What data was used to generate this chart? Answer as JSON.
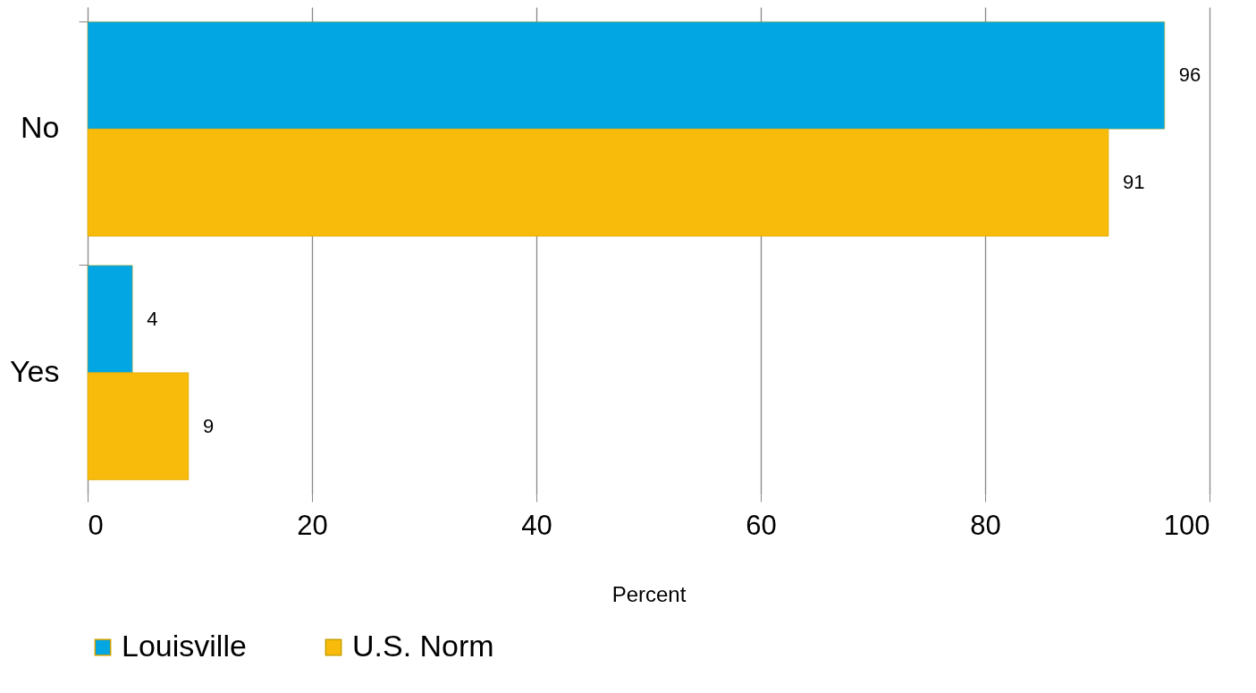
{
  "chart_data": {
    "type": "bar",
    "orientation": "horizontal",
    "categories": [
      "No",
      "Yes"
    ],
    "series": [
      {
        "name": "Louisville",
        "color": "#02a6e2",
        "values": [
          96,
          4
        ]
      },
      {
        "name": "U.S. Norm",
        "color": "#f8bb0b",
        "values": [
          91,
          9
        ]
      }
    ],
    "xlabel": "Percent",
    "xlim": [
      0,
      100
    ],
    "xticks": [
      0,
      20,
      40,
      60,
      80,
      100
    ],
    "grid": "x",
    "legend": "bottom",
    "data_labels": true
  }
}
